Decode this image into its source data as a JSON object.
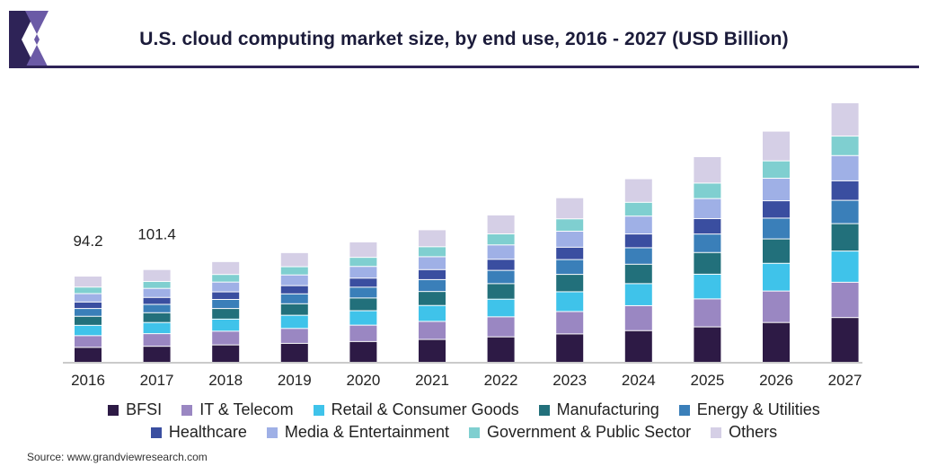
{
  "title": "U.S. cloud computing market size, by end use, 2016 - 2027 (USD Billion)",
  "source": "Source: www.grandviewresearch.com",
  "colors": {
    "header_rule": "#2e2357",
    "logo_dark": "#2e2357",
    "logo_purple": "#6b5aa6"
  },
  "chart_data": {
    "type": "bar",
    "stacked": true,
    "categories": [
      "2016",
      "2017",
      "2018",
      "2019",
      "2020",
      "2021",
      "2022",
      "2023",
      "2024",
      "2025",
      "2026",
      "2027"
    ],
    "totals_labels": [
      "94.2",
      "101.4",
      "",
      "",
      "",
      "",
      "",
      "",
      "",
      "",
      "",
      ""
    ],
    "grid": false,
    "legend_position": "bottom",
    "series": [
      {
        "name": "BFSI",
        "color": "#2d1a45",
        "values": [
          16.3,
          17.5,
          19.0,
          20.7,
          22.7,
          25.0,
          27.8,
          31.0,
          34.6,
          38.7,
          43.5,
          48.9
        ]
      },
      {
        "name": "IT & Telecom",
        "color": "#9a87c2",
        "values": [
          12.8,
          13.8,
          15.0,
          16.3,
          17.9,
          19.7,
          21.9,
          24.5,
          27.3,
          30.6,
          34.4,
          38.6
        ]
      },
      {
        "name": "Retail & Consumer Goods",
        "color": "#3fc3ea",
        "values": [
          11.3,
          12.2,
          13.2,
          14.4,
          15.8,
          17.4,
          19.3,
          21.6,
          24.1,
          27.0,
          30.3,
          34.1
        ]
      },
      {
        "name": "Manufacturing",
        "color": "#22707b",
        "values": [
          9.9,
          10.7,
          11.6,
          12.6,
          13.9,
          15.3,
          17.0,
          19.0,
          21.2,
          23.7,
          26.7,
          30.0
        ]
      },
      {
        "name": "Energy & Utilities",
        "color": "#3a7fb9",
        "values": [
          8.5,
          9.1,
          9.9,
          10.8,
          11.8,
          13.0,
          14.5,
          16.2,
          18.0,
          20.2,
          22.7,
          25.5
        ]
      },
      {
        "name": "Healthcare",
        "color": "#3a4ea0",
        "values": [
          7.1,
          7.6,
          8.3,
          9.0,
          9.9,
          10.9,
          12.1,
          13.5,
          15.1,
          16.9,
          19.0,
          21.3
        ]
      },
      {
        "name": "Media & Entertainment",
        "color": "#9fb0e6",
        "values": [
          9.2,
          9.9,
          10.7,
          11.7,
          12.8,
          14.1,
          15.7,
          17.5,
          19.5,
          21.9,
          24.6,
          27.6
        ]
      },
      {
        "name": "Government & Public Sector",
        "color": "#7fcfd0",
        "values": [
          7.1,
          7.6,
          8.3,
          9.0,
          9.9,
          10.9,
          12.1,
          13.5,
          15.1,
          16.9,
          19.0,
          21.3
        ]
      },
      {
        "name": "Others",
        "color": "#d5cfe6",
        "values": [
          12.0,
          13.0,
          14.1,
          15.4,
          16.9,
          18.6,
          20.7,
          23.1,
          25.8,
          28.9,
          32.5,
          36.4
        ]
      }
    ],
    "title": "U.S. cloud computing market size, by end use, 2016 - 2027 (USD Billion)",
    "xlabel": "",
    "ylabel": ""
  }
}
